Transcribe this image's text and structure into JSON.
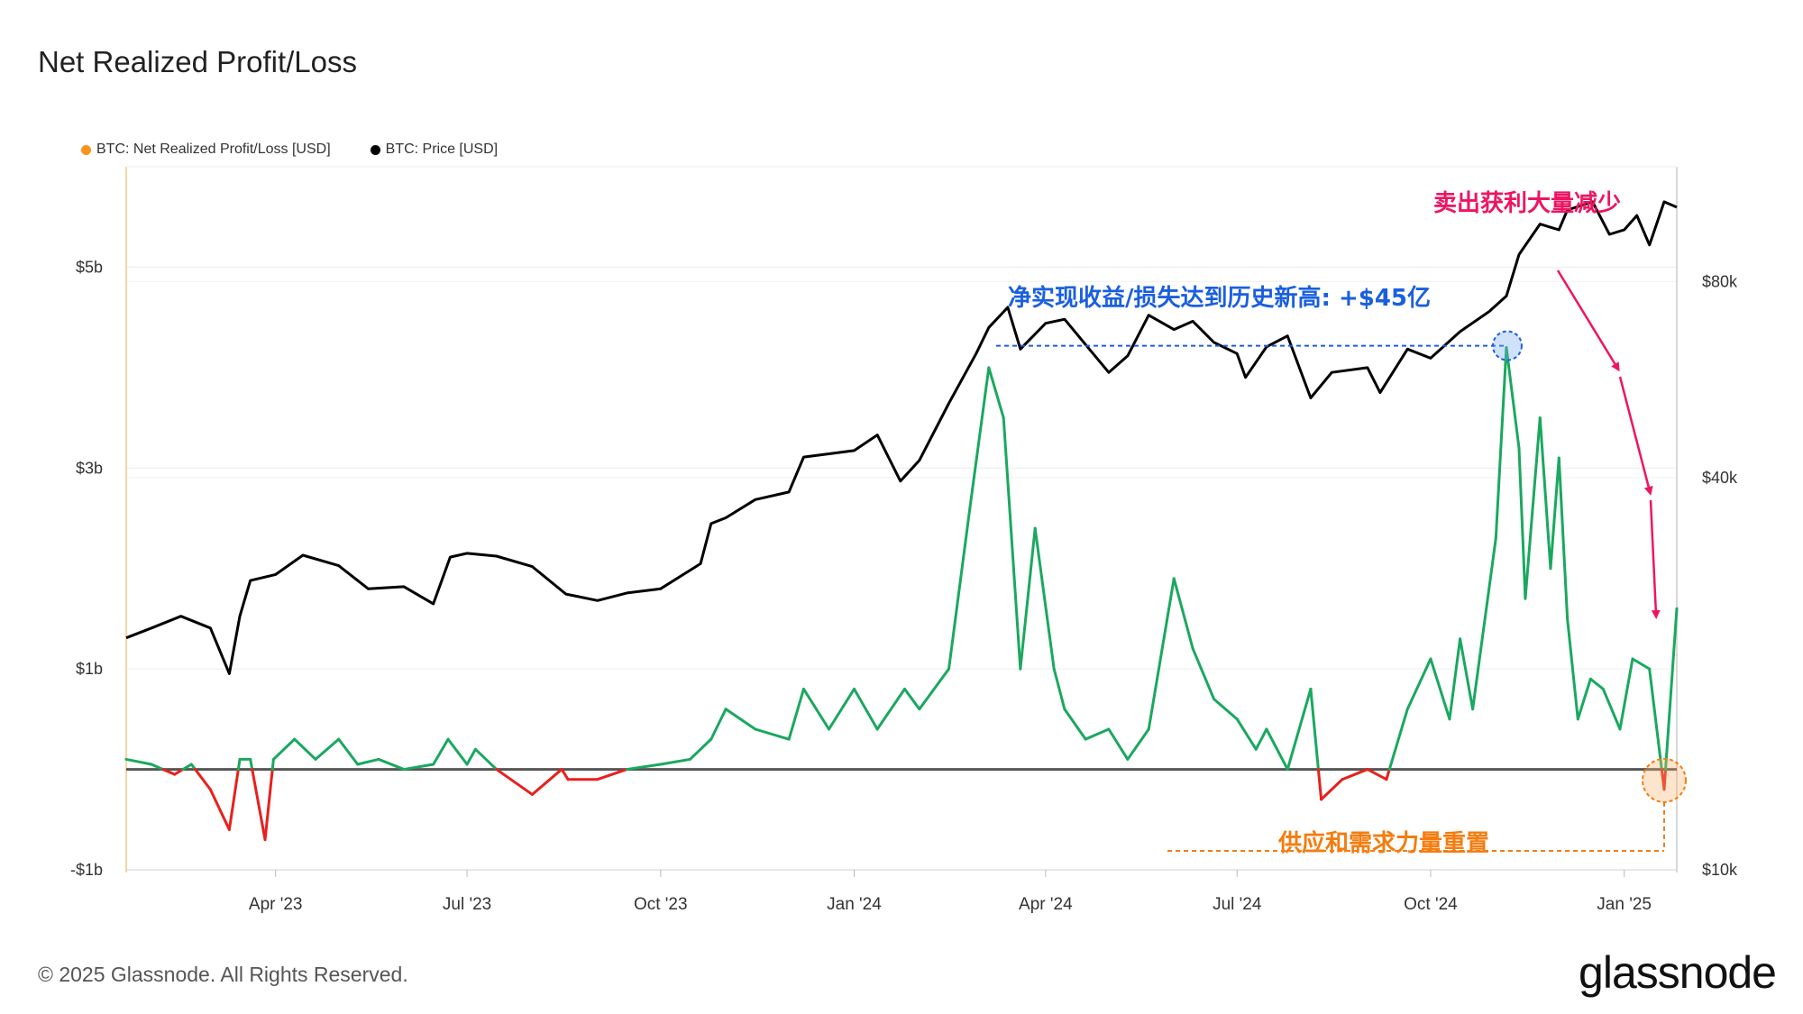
{
  "title": "Net Realized Profit/Loss",
  "legend": [
    {
      "label": "BTC: Net Realized Profit/Loss [USD]",
      "color": "#f7931a"
    },
    {
      "label": "BTC: Price [USD]",
      "color": "#000000"
    }
  ],
  "footer": "© 2025 Glassnode. All Rights Reserved.",
  "brand": "glassnode",
  "annotations": {
    "ath": "净实现收益/损失达到历史新高: +$45亿",
    "decline": "卖出获利大量减少",
    "reset": "供应和需求力量重置"
  },
  "colors": {
    "profit": "#1aa85f",
    "loss": "#e8201c",
    "price": "#000000",
    "ath_annotation": "#1a5fe0",
    "decline_annotation": "#ee1462",
    "reset_annotation": "#f57c10"
  },
  "chart_data": {
    "type": "line",
    "title": "Net Realized Profit/Loss",
    "x_tick_labels": [
      "Apr '23",
      "Jul '23",
      "Oct '23",
      "Jan '24",
      "Apr '24",
      "Jul '24",
      "Oct '24",
      "Jan '25"
    ],
    "y_left_ticks": [
      "$5b",
      "$3b",
      "$1b",
      "-$1b"
    ],
    "y_left_values": [
      5,
      3,
      1,
      -1
    ],
    "y_left_range": [
      -1,
      6
    ],
    "y_right_ticks": [
      "$80k",
      "$40k",
      "$10k"
    ],
    "y_right_values": [
      80000,
      40000,
      10000
    ],
    "y_right_scale": "log",
    "x_range": [
      "2023-01-20",
      "2025-01-26"
    ],
    "grid": true,
    "legend_position": "top-left",
    "series": [
      {
        "name": "BTC: Net Realized Profit/Loss [USD]",
        "axis": "left",
        "unit": "USD billions",
        "x": [
          "2023-01-20",
          "2023-02-01",
          "2023-02-12",
          "2023-02-20",
          "2023-03-01",
          "2023-03-10",
          "2023-03-15",
          "2023-03-20",
          "2023-03-27",
          "2023-03-31",
          "2023-04-10",
          "2023-04-20",
          "2023-05-01",
          "2023-05-10",
          "2023-05-20",
          "2023-06-01",
          "2023-06-15",
          "2023-06-22",
          "2023-07-01",
          "2023-07-05",
          "2023-07-15",
          "2023-08-01",
          "2023-08-15",
          "2023-08-18",
          "2023-09-01",
          "2023-09-15",
          "2023-10-01",
          "2023-10-15",
          "2023-10-25",
          "2023-11-01",
          "2023-11-15",
          "2023-12-01",
          "2023-12-08",
          "2023-12-20",
          "2024-01-01",
          "2024-01-12",
          "2024-01-25",
          "2024-02-01",
          "2024-02-15",
          "2024-02-25",
          "2024-03-05",
          "2024-03-12",
          "2024-03-20",
          "2024-03-27",
          "2024-04-05",
          "2024-04-10",
          "2024-04-20",
          "2024-05-01",
          "2024-05-10",
          "2024-05-20",
          "2024-06-01",
          "2024-06-10",
          "2024-06-20",
          "2024-07-01",
          "2024-07-10",
          "2024-07-15",
          "2024-07-25",
          "2024-08-05",
          "2024-08-10",
          "2024-08-20",
          "2024-09-01",
          "2024-09-10",
          "2024-09-20",
          "2024-10-01",
          "2024-10-10",
          "2024-10-15",
          "2024-10-21",
          "2024-11-01",
          "2024-11-06",
          "2024-11-12",
          "2024-11-15",
          "2024-11-22",
          "2024-11-27",
          "2024-12-01",
          "2024-12-05",
          "2024-12-10",
          "2024-12-16",
          "2024-12-22",
          "2024-12-30",
          "2025-01-05",
          "2025-01-13",
          "2025-01-20",
          "2025-01-26"
        ],
        "values": [
          0.1,
          0.05,
          -0.05,
          0.05,
          -0.2,
          -0.6,
          0.1,
          0.1,
          -0.7,
          0.1,
          0.3,
          0.1,
          0.3,
          0.05,
          0.1,
          0.0,
          0.05,
          0.3,
          0.05,
          0.2,
          0.0,
          -0.25,
          0.0,
          -0.1,
          -0.1,
          0.0,
          0.05,
          0.1,
          0.3,
          0.6,
          0.4,
          0.3,
          0.8,
          0.4,
          0.8,
          0.4,
          0.8,
          0.6,
          1.0,
          2.6,
          4.0,
          3.5,
          1.0,
          2.4,
          1.0,
          0.6,
          0.3,
          0.4,
          0.1,
          0.4,
          1.9,
          1.2,
          0.7,
          0.5,
          0.2,
          0.4,
          0.0,
          0.8,
          -0.3,
          -0.1,
          0.0,
          -0.1,
          0.6,
          1.1,
          0.5,
          1.3,
          0.6,
          2.3,
          4.2,
          3.2,
          1.7,
          3.5,
          2.0,
          3.1,
          1.5,
          0.5,
          0.9,
          0.8,
          0.4,
          1.1,
          1.0,
          -0.2,
          1.6
        ]
      },
      {
        "name": "BTC: Price [USD]",
        "axis": "right",
        "unit": "USD",
        "x": [
          "2023-01-20",
          "2023-02-01",
          "2023-02-15",
          "2023-03-01",
          "2023-03-10",
          "2023-03-15",
          "2023-03-20",
          "2023-04-01",
          "2023-04-14",
          "2023-05-01",
          "2023-05-15",
          "2023-06-01",
          "2023-06-15",
          "2023-06-23",
          "2023-07-01",
          "2023-07-15",
          "2023-08-01",
          "2023-08-17",
          "2023-09-01",
          "2023-09-15",
          "2023-10-01",
          "2023-10-20",
          "2023-10-25",
          "2023-11-01",
          "2023-11-15",
          "2023-12-01",
          "2023-12-08",
          "2023-12-20",
          "2024-01-01",
          "2024-01-12",
          "2024-01-23",
          "2024-02-01",
          "2024-02-15",
          "2024-02-28",
          "2024-03-05",
          "2024-03-14",
          "2024-03-20",
          "2024-04-01",
          "2024-04-10",
          "2024-04-20",
          "2024-05-01",
          "2024-05-10",
          "2024-05-20",
          "2024-06-01",
          "2024-06-10",
          "2024-06-20",
          "2024-07-01",
          "2024-07-05",
          "2024-07-15",
          "2024-07-25",
          "2024-08-05",
          "2024-08-15",
          "2024-09-01",
          "2024-09-07",
          "2024-09-20",
          "2024-10-01",
          "2024-10-15",
          "2024-10-29",
          "2024-11-06",
          "2024-11-12",
          "2024-11-22",
          "2024-12-01",
          "2024-12-05",
          "2024-12-17",
          "2024-12-25",
          "2025-01-01",
          "2025-01-07",
          "2025-01-13",
          "2025-01-20",
          "2025-01-26"
        ],
        "values": [
          22700,
          23500,
          24500,
          23500,
          20000,
          24500,
          27800,
          28400,
          30400,
          29300,
          27000,
          27200,
          25600,
          30200,
          30600,
          30300,
          29200,
          26500,
          25900,
          26600,
          27000,
          29500,
          34000,
          34700,
          37000,
          38000,
          43000,
          43500,
          44000,
          46500,
          39500,
          42500,
          52000,
          62000,
          68000,
          73000,
          63000,
          69000,
          70000,
          64000,
          58000,
          61500,
          71000,
          67500,
          69500,
          64500,
          62000,
          57000,
          63500,
          66000,
          53000,
          58000,
          59000,
          54000,
          63000,
          61000,
          67000,
          72000,
          76000,
          88000,
          98000,
          96000,
          103000,
          106000,
          94500,
          96000,
          101000,
          91000,
          106000,
          104000
        ]
      }
    ]
  }
}
